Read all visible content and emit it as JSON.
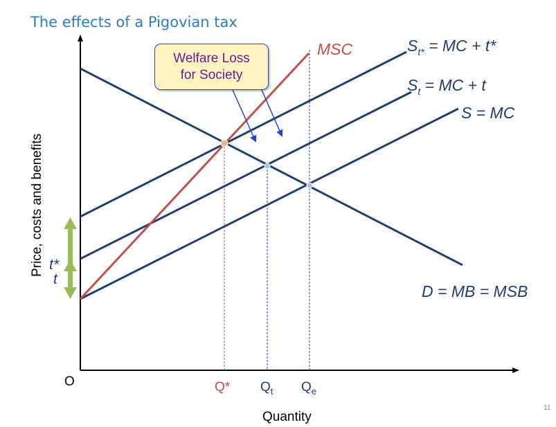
{
  "title": "The effects of a Pigovian tax",
  "callout": {
    "line1": "Welfare Loss",
    "line2": "for Society"
  },
  "labels": {
    "msc": "MSC",
    "st_star": {
      "base": "S",
      "sub": "t*",
      "rest": " = MC + t*"
    },
    "st": {
      "base": "S",
      "sub": "t",
      "rest": " = MC + t"
    },
    "s": "S = MC",
    "d": "D = MB = MSB",
    "t_star": "t*",
    "t": "t"
  },
  "axes": {
    "x_label": "Quantity",
    "y_label": "Price, costs and benefits",
    "origin": "O"
  },
  "quantities": {
    "q_star": "Q*",
    "q_t": {
      "base": "Q",
      "sub": "t"
    },
    "q_e": {
      "base": "Q",
      "sub": "e"
    }
  },
  "page_number": "11",
  "colors": {
    "curve": "#1f3f6e",
    "msc": "#c0504d",
    "title": "#2f7bbf",
    "arrow": "#9bbb59",
    "point_light": "#9dc3e6",
    "point_star": "#f4b183"
  }
}
